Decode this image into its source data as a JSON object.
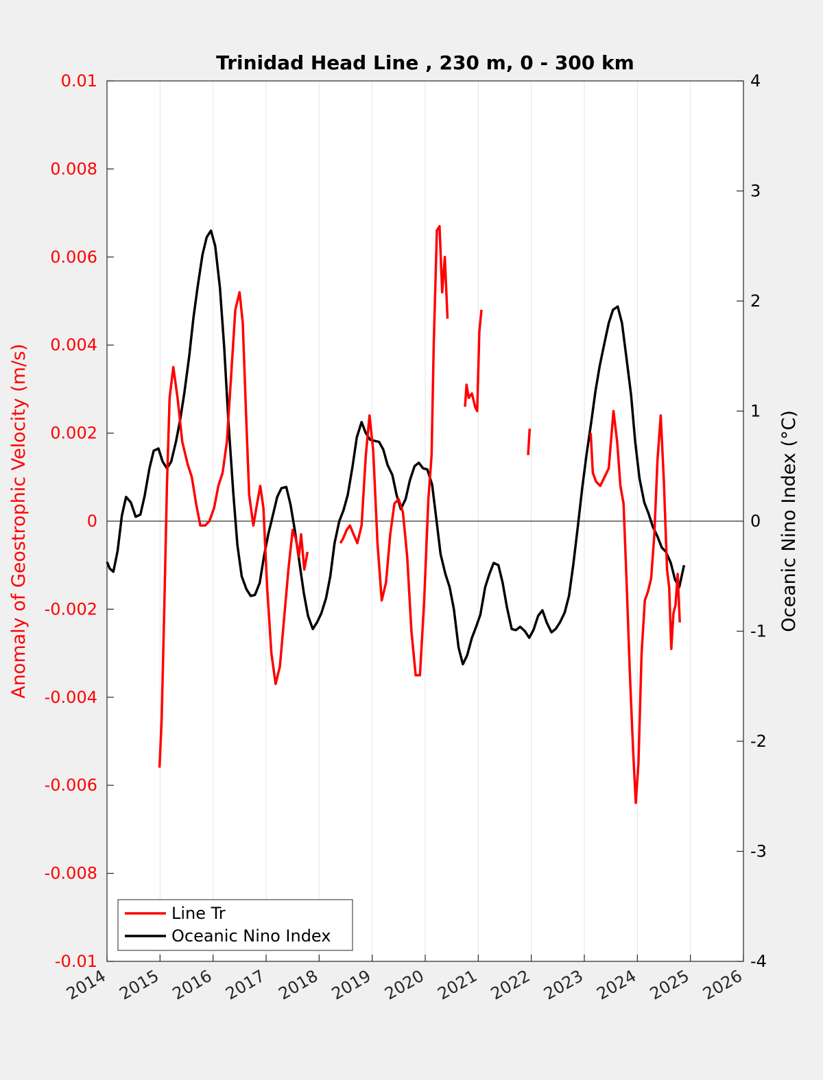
{
  "chart_data": {
    "type": "line",
    "title": "Trinidad Head Line , 230 m, 0 - 300 km",
    "xlabel": "",
    "ylabel_left": "Anomaly of Geostrophic Velocity (m/s)",
    "ylabel_right": "Oceanic Nino Index (°C)",
    "xlim": [
      2014,
      2026
    ],
    "ylim_left": [
      -0.01,
      0.01
    ],
    "ylim_right": [
      -4,
      4
    ],
    "x_ticks": [
      "2014",
      "2015",
      "2016",
      "2017",
      "2018",
      "2019",
      "2020",
      "2021",
      "2022",
      "2023",
      "2024",
      "2025",
      "2026"
    ],
    "y_left_ticks": [
      "-0.01",
      "-0.008",
      "-0.006",
      "-0.004",
      "-0.002",
      "0",
      "0.002",
      "0.004",
      "0.006",
      "0.008",
      "0.01"
    ],
    "y_right_ticks": [
      "-4",
      "-3",
      "-2",
      "-1",
      "0",
      "1",
      "2",
      "3",
      "4"
    ],
    "grid": "vertical",
    "zero_line": true,
    "legend_position": "bottom-left",
    "colors": {
      "line_tr": "#ff0000",
      "oni": "#000000",
      "left_axis": "#ff0000",
      "right_axis": "#000000"
    },
    "series": [
      {
        "name": "Line Tr",
        "axis": "left",
        "segments": [
          [
            [
              2014.99,
              -0.0056
            ],
            [
              2015.03,
              -0.0045
            ],
            [
              2015.08,
              -0.002
            ],
            [
              2015.13,
              0.0008
            ],
            [
              2015.18,
              0.0028
            ],
            [
              2015.25,
              0.0035
            ],
            [
              2015.33,
              0.0028
            ],
            [
              2015.42,
              0.0018
            ],
            [
              2015.52,
              0.0013
            ],
            [
              2015.6,
              0.001
            ],
            [
              2015.68,
              0.0004
            ],
            [
              2015.76,
              -0.0001
            ],
            [
              2015.85,
              -0.0001
            ],
            [
              2015.93,
              0.0
            ],
            [
              2016.02,
              0.0003
            ],
            [
              2016.1,
              0.0008
            ],
            [
              2016.18,
              0.0011
            ],
            [
              2016.26,
              0.0018
            ],
            [
              2016.34,
              0.0033
            ],
            [
              2016.42,
              0.0048
            ],
            [
              2016.5,
              0.0052
            ],
            [
              2016.56,
              0.0045
            ],
            [
              2016.62,
              0.0025
            ],
            [
              2016.68,
              0.0006
            ],
            [
              2016.76,
              -0.0001
            ],
            [
              2016.83,
              0.0004
            ],
            [
              2016.89,
              0.0008
            ],
            [
              2016.95,
              0.0003
            ],
            [
              2017.02,
              -0.0015
            ],
            [
              2017.1,
              -0.003
            ],
            [
              2017.18,
              -0.0037
            ],
            [
              2017.26,
              -0.0033
            ],
            [
              2017.34,
              -0.0022
            ],
            [
              2017.42,
              -0.0011
            ],
            [
              2017.5,
              -0.0002
            ],
            [
              2017.56,
              -0.0004
            ],
            [
              2017.62,
              -0.0008
            ],
            [
              2017.66,
              -0.0003
            ],
            [
              2017.72,
              -0.0011
            ],
            [
              2017.78,
              -0.0007
            ]
          ],
          [
            [
              2018.4,
              -0.0005
            ],
            [
              2018.45,
              -0.0004
            ],
            [
              2018.52,
              -0.0002
            ],
            [
              2018.58,
              -0.0001
            ],
            [
              2018.65,
              -0.0003
            ],
            [
              2018.72,
              -0.0005
            ],
            [
              2018.8,
              -0.0001
            ],
            [
              2018.88,
              0.0015
            ],
            [
              2018.95,
              0.0024
            ],
            [
              2019.02,
              0.0016
            ],
            [
              2019.1,
              -0.0005
            ],
            [
              2019.18,
              -0.0018
            ],
            [
              2019.26,
              -0.0014
            ],
            [
              2019.34,
              -0.0003
            ],
            [
              2019.42,
              0.0004
            ],
            [
              2019.5,
              0.0005
            ],
            [
              2019.58,
              0.0002
            ],
            [
              2019.66,
              -0.0008
            ],
            [
              2019.74,
              -0.0025
            ],
            [
              2019.82,
              -0.0035
            ],
            [
              2019.9,
              -0.0035
            ],
            [
              2019.98,
              -0.0018
            ],
            [
              2020.06,
              0.0005
            ],
            [
              2020.12,
              0.0015
            ],
            [
              2020.16,
              0.004
            ],
            [
              2020.22,
              0.0066
            ],
            [
              2020.27,
              0.0067
            ],
            [
              2020.32,
              0.0052
            ],
            [
              2020.37,
              0.006
            ],
            [
              2020.42,
              0.0046
            ]
          ],
          [
            [
              2020.75,
              0.0026
            ],
            [
              2020.78,
              0.0031
            ],
            [
              2020.82,
              0.0028
            ],
            [
              2020.88,
              0.0029
            ],
            [
              2020.94,
              0.0026
            ],
            [
              2020.98,
              0.0025
            ],
            [
              2021.02,
              0.0043
            ],
            [
              2021.06,
              0.0048
            ]
          ],
          [
            [
              2021.94,
              0.0015
            ],
            [
              2021.97,
              0.0021
            ]
          ],
          [
            [
              2023.12,
              0.002
            ],
            [
              2023.16,
              0.0011
            ],
            [
              2023.22,
              0.0009
            ],
            [
              2023.3,
              0.0008
            ],
            [
              2023.38,
              0.001
            ],
            [
              2023.46,
              0.0012
            ],
            [
              2023.55,
              0.0025
            ],
            [
              2023.62,
              0.0018
            ],
            [
              2023.68,
              0.0008
            ],
            [
              2023.74,
              0.0004
            ],
            [
              2023.8,
              -0.0015
            ],
            [
              2023.86,
              -0.0035
            ],
            [
              2023.92,
              -0.0052
            ],
            [
              2023.97,
              -0.0064
            ],
            [
              2024.02,
              -0.0055
            ],
            [
              2024.08,
              -0.003
            ],
            [
              2024.14,
              -0.0018
            ],
            [
              2024.2,
              -0.0016
            ],
            [
              2024.26,
              -0.0013
            ],
            [
              2024.32,
              -0.0003
            ],
            [
              2024.38,
              0.0014
            ],
            [
              2024.44,
              0.0024
            ],
            [
              2024.5,
              0.0009
            ],
            [
              2024.56,
              -0.0011
            ],
            [
              2024.6,
              -0.0015
            ],
            [
              2024.64,
              -0.0029
            ],
            [
              2024.68,
              -0.0021
            ],
            [
              2024.72,
              -0.0019
            ],
            [
              2024.76,
              -0.0012
            ],
            [
              2024.8,
              -0.0023
            ]
          ]
        ]
      },
      {
        "name": "Oceanic Nino Index",
        "axis": "right",
        "segments": [
          [
            [
              2014.0,
              -0.37
            ],
            [
              2014.05,
              -0.43
            ],
            [
              2014.12,
              -0.46
            ],
            [
              2014.2,
              -0.27
            ],
            [
              2014.28,
              0.05
            ],
            [
              2014.36,
              0.22
            ],
            [
              2014.45,
              0.17
            ],
            [
              2014.54,
              0.04
            ],
            [
              2014.63,
              0.06
            ],
            [
              2014.71,
              0.23
            ],
            [
              2014.8,
              0.48
            ],
            [
              2014.88,
              0.64
            ],
            [
              2014.97,
              0.66
            ],
            [
              2015.05,
              0.54
            ],
            [
              2015.13,
              0.48
            ],
            [
              2015.21,
              0.54
            ],
            [
              2015.3,
              0.72
            ],
            [
              2015.38,
              0.92
            ],
            [
              2015.46,
              1.17
            ],
            [
              2015.55,
              1.5
            ],
            [
              2015.63,
              1.85
            ],
            [
              2015.71,
              2.13
            ],
            [
              2015.8,
              2.42
            ],
            [
              2015.88,
              2.58
            ],
            [
              2015.96,
              2.64
            ],
            [
              2016.04,
              2.5
            ],
            [
              2016.13,
              2.12
            ],
            [
              2016.21,
              1.58
            ],
            [
              2016.29,
              0.9
            ],
            [
              2016.38,
              0.26
            ],
            [
              2016.46,
              -0.22
            ],
            [
              2016.54,
              -0.5
            ],
            [
              2016.63,
              -0.62
            ],
            [
              2016.71,
              -0.68
            ],
            [
              2016.79,
              -0.67
            ],
            [
              2016.88,
              -0.56
            ],
            [
              2016.96,
              -0.32
            ],
            [
              2017.04,
              -0.12
            ],
            [
              2017.13,
              0.06
            ],
            [
              2017.21,
              0.22
            ],
            [
              2017.29,
              0.3
            ],
            [
              2017.38,
              0.31
            ],
            [
              2017.46,
              0.15
            ],
            [
              2017.54,
              -0.08
            ],
            [
              2017.63,
              -0.38
            ],
            [
              2017.71,
              -0.65
            ],
            [
              2017.79,
              -0.86
            ],
            [
              2017.88,
              -0.98
            ],
            [
              2017.96,
              -0.92
            ],
            [
              2018.04,
              -0.84
            ],
            [
              2018.13,
              -0.7
            ],
            [
              2018.21,
              -0.5
            ],
            [
              2018.29,
              -0.2
            ],
            [
              2018.38,
              0.0
            ],
            [
              2018.46,
              0.1
            ],
            [
              2018.54,
              0.24
            ],
            [
              2018.63,
              0.5
            ],
            [
              2018.71,
              0.76
            ],
            [
              2018.8,
              0.9
            ],
            [
              2018.88,
              0.8
            ],
            [
              2018.96,
              0.74
            ],
            [
              2019.04,
              0.73
            ],
            [
              2019.13,
              0.72
            ],
            [
              2019.21,
              0.65
            ],
            [
              2019.29,
              0.51
            ],
            [
              2019.38,
              0.42
            ],
            [
              2019.46,
              0.24
            ],
            [
              2019.54,
              0.11
            ],
            [
              2019.63,
              0.2
            ],
            [
              2019.71,
              0.37
            ],
            [
              2019.8,
              0.5
            ],
            [
              2019.88,
              0.53
            ],
            [
              2019.96,
              0.48
            ],
            [
              2020.04,
              0.47
            ],
            [
              2020.13,
              0.33
            ],
            [
              2020.21,
              0.02
            ],
            [
              2020.29,
              -0.3
            ],
            [
              2020.38,
              -0.48
            ],
            [
              2020.46,
              -0.6
            ],
            [
              2020.54,
              -0.8
            ],
            [
              2020.63,
              -1.15
            ],
            [
              2020.71,
              -1.3
            ],
            [
              2020.79,
              -1.22
            ],
            [
              2020.88,
              -1.06
            ],
            [
              2020.96,
              -0.96
            ],
            [
              2021.04,
              -0.85
            ],
            [
              2021.13,
              -0.6
            ],
            [
              2021.21,
              -0.48
            ],
            [
              2021.29,
              -0.38
            ],
            [
              2021.38,
              -0.4
            ],
            [
              2021.46,
              -0.56
            ],
            [
              2021.54,
              -0.78
            ],
            [
              2021.63,
              -0.98
            ],
            [
              2021.71,
              -0.99
            ],
            [
              2021.79,
              -0.96
            ],
            [
              2021.88,
              -1.0
            ],
            [
              2021.96,
              -1.06
            ],
            [
              2022.04,
              -0.99
            ],
            [
              2022.13,
              -0.86
            ],
            [
              2022.21,
              -0.81
            ],
            [
              2022.29,
              -0.92
            ],
            [
              2022.38,
              -1.01
            ],
            [
              2022.46,
              -0.98
            ],
            [
              2022.54,
              -0.92
            ],
            [
              2022.63,
              -0.83
            ],
            [
              2022.71,
              -0.68
            ],
            [
              2022.79,
              -0.4
            ],
            [
              2022.88,
              -0.04
            ],
            [
              2022.96,
              0.3
            ],
            [
              2023.04,
              0.6
            ],
            [
              2023.13,
              0.9
            ],
            [
              2023.21,
              1.18
            ],
            [
              2023.29,
              1.41
            ],
            [
              2023.38,
              1.62
            ],
            [
              2023.46,
              1.8
            ],
            [
              2023.54,
              1.92
            ],
            [
              2023.63,
              1.95
            ],
            [
              2023.71,
              1.8
            ],
            [
              2023.79,
              1.5
            ],
            [
              2023.88,
              1.15
            ],
            [
              2023.96,
              0.72
            ],
            [
              2024.04,
              0.39
            ],
            [
              2024.13,
              0.17
            ],
            [
              2024.21,
              0.07
            ],
            [
              2024.29,
              -0.05
            ],
            [
              2024.38,
              -0.14
            ],
            [
              2024.46,
              -0.24
            ],
            [
              2024.54,
              -0.28
            ],
            [
              2024.63,
              -0.38
            ],
            [
              2024.71,
              -0.53
            ],
            [
              2024.79,
              -0.6
            ],
            [
              2024.88,
              -0.4
            ]
          ]
        ]
      }
    ]
  }
}
